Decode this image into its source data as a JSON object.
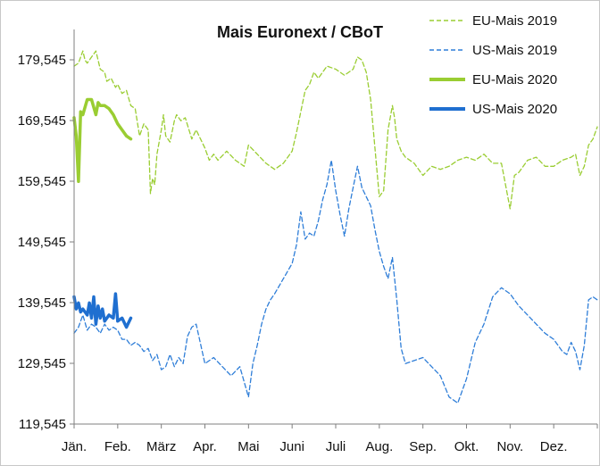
{
  "chart_data": {
    "type": "line",
    "title": "Mais Euronext / CBoT",
    "xlabel": "",
    "ylabel": "",
    "ylim": [
      119.545,
      184.545
    ],
    "yticks": [
      "119,545",
      "129,545",
      "139,545",
      "149,545",
      "159,545",
      "169,545",
      "179,545"
    ],
    "ytick_values": [
      119.545,
      129.545,
      139.545,
      149.545,
      159.545,
      169.545,
      179.545
    ],
    "xlim": [
      0,
      12
    ],
    "months": [
      "Jän.",
      "Feb.",
      "März",
      "Apr.",
      "Mai",
      "Juni",
      "Juli",
      "Aug.",
      "Sep.",
      "Okt.",
      "Nov.",
      "Dez."
    ],
    "grid": false,
    "legend_position": "top-right",
    "series": [
      {
        "name": "EU-Mais 2019",
        "color": "#9acd32",
        "style": "dashed",
        "x": [
          0,
          0.1,
          0.2,
          0.25,
          0.3,
          0.4,
          0.5,
          0.6,
          0.7,
          0.75,
          0.85,
          0.95,
          1.0,
          1.1,
          1.2,
          1.3,
          1.4,
          1.5,
          1.6,
          1.7,
          1.75,
          1.8,
          1.85,
          1.9,
          2.0,
          2.05,
          2.1,
          2.2,
          2.3,
          2.35,
          2.45,
          2.55,
          2.7,
          2.8,
          2.9,
          3.0,
          3.1,
          3.2,
          3.3,
          3.5,
          3.7,
          3.9,
          4.0,
          4.2,
          4.4,
          4.6,
          4.8,
          5.0,
          5.1,
          5.2,
          5.3,
          5.4,
          5.5,
          5.6,
          5.8,
          6.0,
          6.2,
          6.4,
          6.5,
          6.6,
          6.7,
          6.8,
          7.0,
          7.1,
          7.2,
          7.3,
          7.35,
          7.4,
          7.5,
          7.6,
          7.8,
          8.0,
          8.2,
          8.4,
          8.6,
          8.8,
          9.0,
          9.2,
          9.4,
          9.6,
          9.8,
          10.0,
          10.1,
          10.2,
          10.4,
          10.6,
          10.8,
          11.0,
          11.2,
          11.4,
          11.5,
          11.6,
          11.7,
          11.8,
          11.9,
          12.0
        ],
        "values": [
          178.5,
          179.0,
          181.0,
          179.5,
          179.0,
          180.0,
          181.0,
          178.0,
          177.5,
          176.0,
          176.5,
          175.0,
          175.5,
          174.0,
          174.5,
          172.0,
          171.5,
          167.0,
          169.0,
          168.0,
          157.5,
          160.0,
          159.0,
          164.0,
          168.0,
          170.5,
          167.0,
          166.0,
          169.5,
          170.5,
          169.5,
          170.0,
          166.5,
          168.0,
          166.5,
          165.0,
          163.0,
          164.0,
          163.0,
          164.5,
          163.0,
          162.0,
          165.5,
          164.0,
          162.5,
          161.5,
          162.5,
          164.5,
          167.5,
          171.0,
          174.5,
          175.5,
          177.5,
          176.5,
          178.5,
          178.0,
          177.0,
          178.0,
          180.0,
          179.5,
          177.5,
          173.0,
          157.0,
          158.0,
          168.0,
          172.0,
          170.0,
          166.5,
          164.5,
          163.5,
          162.5,
          160.5,
          162.0,
          161.5,
          162.0,
          163.0,
          163.5,
          163.0,
          164.0,
          162.5,
          162.5,
          155.0,
          160.5,
          161.0,
          163.0,
          163.5,
          162.0,
          162.0,
          163.0,
          163.5,
          164.0,
          160.5,
          162.0,
          165.5,
          166.5,
          168.5
        ]
      },
      {
        "name": "US-Mais 2019",
        "color": "#2f7ed8",
        "style": "dashed",
        "x": [
          0,
          0.1,
          0.2,
          0.3,
          0.4,
          0.5,
          0.6,
          0.7,
          0.8,
          0.9,
          1.0,
          1.1,
          1.2,
          1.3,
          1.4,
          1.5,
          1.6,
          1.7,
          1.8,
          1.9,
          2.0,
          2.1,
          2.2,
          2.3,
          2.4,
          2.5,
          2.6,
          2.7,
          2.8,
          3.0,
          3.2,
          3.4,
          3.6,
          3.8,
          4.0,
          4.1,
          4.2,
          4.3,
          4.4,
          4.5,
          4.6,
          4.8,
          5.0,
          5.1,
          5.2,
          5.3,
          5.4,
          5.5,
          5.6,
          5.7,
          5.8,
          5.9,
          6.0,
          6.1,
          6.2,
          6.3,
          6.4,
          6.5,
          6.6,
          6.7,
          6.8,
          6.9,
          7.0,
          7.1,
          7.2,
          7.3,
          7.4,
          7.5,
          7.6,
          7.8,
          8.0,
          8.2,
          8.4,
          8.6,
          8.8,
          9.0,
          9.2,
          9.4,
          9.6,
          9.8,
          10.0,
          10.2,
          10.4,
          10.6,
          10.8,
          11.0,
          11.1,
          11.2,
          11.3,
          11.4,
          11.5,
          11.6,
          11.7,
          11.8,
          11.9,
          12.0
        ],
        "values": [
          134.5,
          135.5,
          137.5,
          135.0,
          136.0,
          135.5,
          134.5,
          136.0,
          135.0,
          135.5,
          135.0,
          133.5,
          133.5,
          132.5,
          133.0,
          132.5,
          131.5,
          132.0,
          130.0,
          131.0,
          128.5,
          129.0,
          131.0,
          129.0,
          130.5,
          129.5,
          134.0,
          135.5,
          136.0,
          129.5,
          130.5,
          129.0,
          127.5,
          129.0,
          124.0,
          129.5,
          132.5,
          136.0,
          138.5,
          140.0,
          141.0,
          143.5,
          146.0,
          149.0,
          154.5,
          150.0,
          151.0,
          150.5,
          153.0,
          156.5,
          159.0,
          163.0,
          158.0,
          154.0,
          150.5,
          155.0,
          158.5,
          162.0,
          158.5,
          157.0,
          155.5,
          151.5,
          148.0,
          145.5,
          143.5,
          147.0,
          140.0,
          132.0,
          129.5,
          130.0,
          130.5,
          129.0,
          127.5,
          124.0,
          123.0,
          127.0,
          133.0,
          136.0,
          140.5,
          142.0,
          141.0,
          139.0,
          137.5,
          136.0,
          134.5,
          133.5,
          132.5,
          131.5,
          131.0,
          133.0,
          131.5,
          128.5,
          132.5,
          140.0,
          140.5,
          140.0
        ]
      },
      {
        "name": "EU-Mais 2020",
        "color": "#9acd32",
        "style": "solid",
        "x": [
          0,
          0.05,
          0.1,
          0.15,
          0.2,
          0.3,
          0.4,
          0.5,
          0.55,
          0.6,
          0.7,
          0.8,
          0.9,
          1.0,
          1.1,
          1.2,
          1.3
        ],
        "values": [
          170.0,
          167.0,
          159.5,
          171.0,
          170.5,
          173.0,
          173.0,
          170.5,
          172.5,
          172.0,
          172.0,
          171.5,
          170.5,
          169.0,
          168.0,
          167.0,
          166.5
        ]
      },
      {
        "name": "US-Mais 2020",
        "color": "#1f6fd0",
        "style": "solid",
        "x": [
          0,
          0.05,
          0.1,
          0.15,
          0.2,
          0.3,
          0.35,
          0.4,
          0.45,
          0.5,
          0.55,
          0.6,
          0.65,
          0.7,
          0.8,
          0.9,
          0.95,
          1.0,
          1.1,
          1.2,
          1.3
        ],
        "values": [
          140.5,
          138.5,
          139.5,
          138.0,
          138.5,
          137.5,
          139.5,
          137.0,
          140.5,
          136.0,
          139.0,
          137.0,
          138.5,
          136.5,
          137.5,
          137.0,
          141.0,
          136.5,
          137.0,
          135.5,
          137.0
        ]
      }
    ]
  }
}
